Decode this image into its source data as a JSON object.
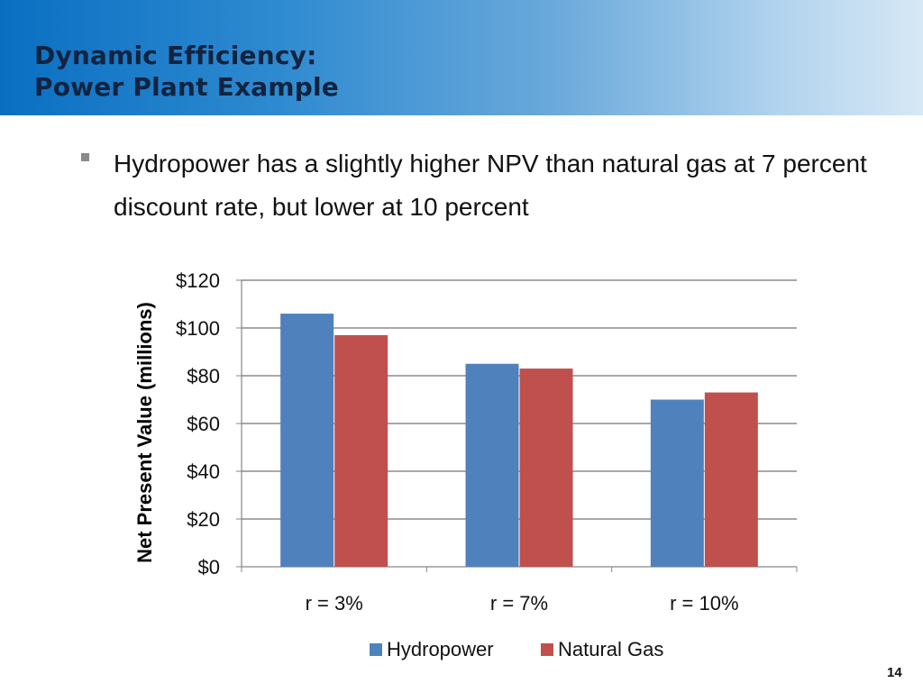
{
  "slide": {
    "title_line1": "Dynamic Efficiency:",
    "title_line2": "Power Plant Example",
    "bullet": "Hydropower has a slightly higher NPV than natural gas at 7 percent discount rate, but lower at 10 percent",
    "page_number": "14"
  },
  "colors": {
    "hydropower": "#4f81bd",
    "natural_gas": "#c0504d",
    "grid": "#8c8c8c",
    "axis": "#868686"
  },
  "chart_data": {
    "type": "bar",
    "categories": [
      "r = 3%",
      "r = 7%",
      "r = 10%"
    ],
    "series": [
      {
        "name": "Hydropower",
        "values": [
          106,
          85,
          70
        ]
      },
      {
        "name": "Natural Gas",
        "values": [
          97,
          83,
          73
        ]
      }
    ],
    "ylabel": "Net Present Value (millions)",
    "ylim": [
      0,
      120
    ],
    "yticks": [
      "$0",
      "$20",
      "$40",
      "$60",
      "$80",
      "$100",
      "$120"
    ],
    "grid": true,
    "legend": "bottom"
  }
}
